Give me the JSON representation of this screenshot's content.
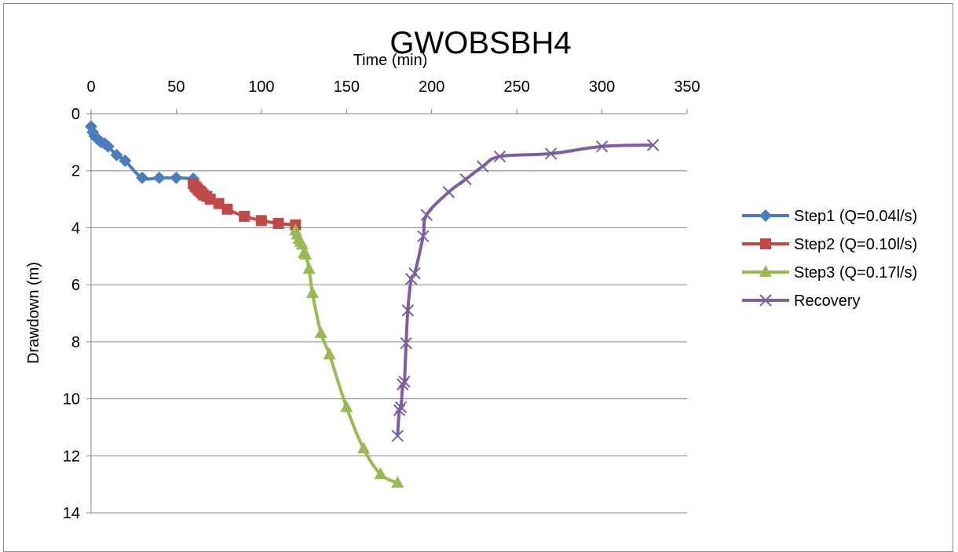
{
  "chart_data": {
    "type": "line",
    "title": "GWOBSBH4",
    "xlabel": "Time (min)",
    "ylabel": "Drawdown (m)",
    "xlim": [
      0,
      350
    ],
    "ylim": [
      0,
      14
    ],
    "x_ticks": [
      "0",
      "50",
      "100",
      "150",
      "200",
      "250",
      "300",
      "350"
    ],
    "y_ticks": [
      "0",
      "2",
      "4",
      "6",
      "8",
      "10",
      "12",
      "14"
    ],
    "x_axis_position": "top",
    "y_axis_inverted": true,
    "grid": "horizontal",
    "legend_position": "right",
    "series": [
      {
        "name": "Step1 (Q=0.04l/s)",
        "color": "#4a7ebb",
        "marker": "diamond",
        "x": [
          0,
          1,
          2,
          3,
          4,
          5,
          6,
          8,
          10,
          15,
          20,
          30,
          40,
          50,
          60
        ],
        "y": [
          0.45,
          0.65,
          0.78,
          0.85,
          0.9,
          0.95,
          1.0,
          1.05,
          1.15,
          1.45,
          1.65,
          2.25,
          2.25,
          2.25,
          2.28
        ]
      },
      {
        "name": "Step2 (Q=0.10l/s)",
        "color": "#be4b48",
        "marker": "square",
        "x": [
          60,
          61,
          62,
          63,
          64,
          65,
          66,
          68,
          70,
          75,
          80,
          90,
          100,
          110,
          120
        ],
        "y": [
          2.45,
          2.55,
          2.6,
          2.68,
          2.72,
          2.78,
          2.85,
          2.9,
          3.0,
          3.15,
          3.35,
          3.6,
          3.75,
          3.85,
          3.9
        ]
      },
      {
        "name": "Step3 (Q=0.17l/s)",
        "color": "#98b954",
        "marker": "triangle",
        "x": [
          120,
          121,
          122,
          123,
          124,
          125,
          126,
          128,
          130,
          135,
          140,
          150,
          160,
          170,
          180
        ],
        "y": [
          4.1,
          4.25,
          4.4,
          4.5,
          4.6,
          4.9,
          4.95,
          5.45,
          6.3,
          7.7,
          8.45,
          10.3,
          11.75,
          12.65,
          12.95
        ]
      },
      {
        "name": "Recovery",
        "color": "#7d5fa0",
        "marker": "x",
        "x": [
          180,
          181,
          182,
          183,
          184,
          185,
          186,
          188,
          190,
          195,
          197,
          210,
          220,
          230,
          240,
          270,
          300,
          330
        ],
        "y": [
          11.3,
          10.4,
          10.3,
          9.5,
          9.4,
          8.05,
          6.9,
          5.8,
          5.6,
          4.3,
          3.55,
          2.75,
          2.3,
          1.85,
          1.5,
          1.4,
          1.15,
          1.1
        ]
      }
    ]
  }
}
